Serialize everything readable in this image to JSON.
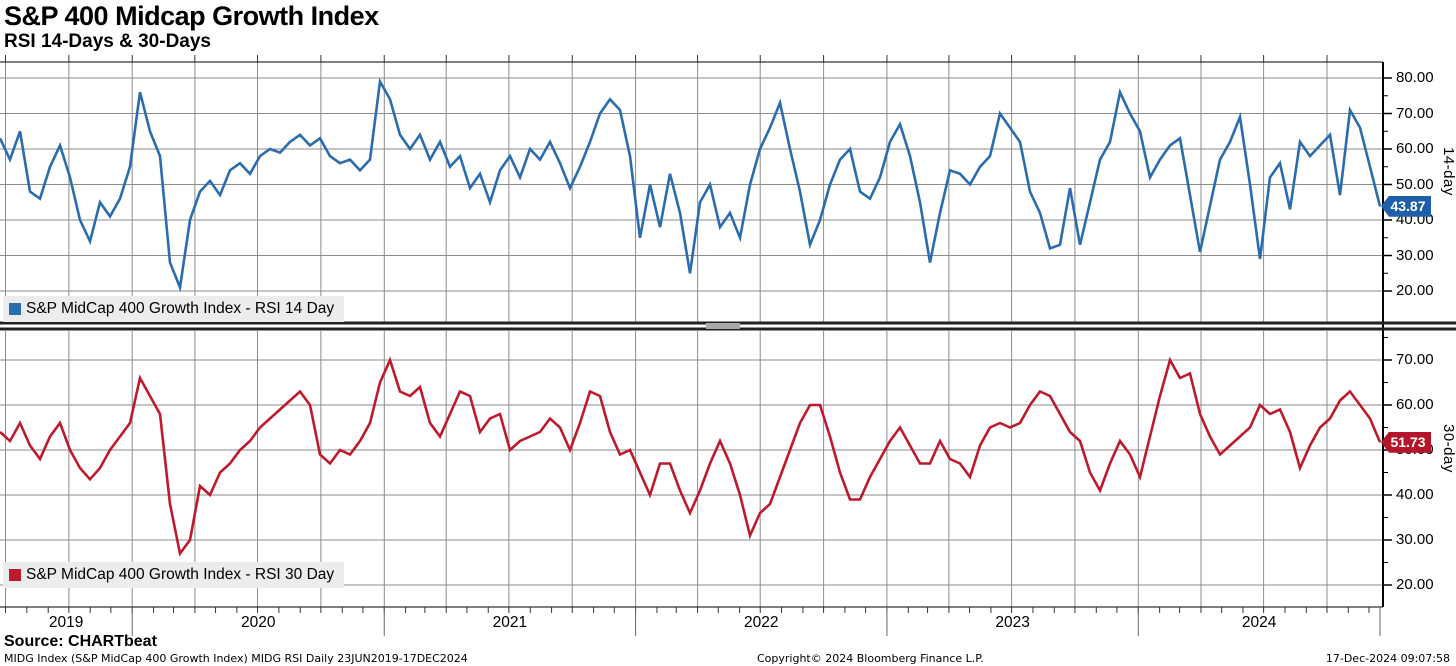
{
  "title": "S&P 400 Midcap Growth Index",
  "subtitle": "RSI 14-Days & 30-Days",
  "source_line": "Source: CHARTbeat",
  "footer": {
    "left": "MIDG Index (S&P MidCap 400 Growth Index) MIDG RSI  Daily 23JUN2019-17DEC2024",
    "center": "Copyright© 2024 Bloomberg Finance L.P.",
    "right": "17-Dec-2024 09:07:58"
  },
  "x_axis": {
    "year_labels": [
      "2019",
      "2020",
      "2021",
      "2022",
      "2023",
      "2024"
    ],
    "date_start": "2019-06-23",
    "date_end": "2024-12-17"
  },
  "panels": [
    {
      "id": "rsi14",
      "axis_title": "14-day",
      "legend_label": "S&P MidCap 400 Growth Index - RSI 14 Day",
      "line_color": "#2b6cad",
      "badge_color": "#1f5fa9",
      "last_value_label": "43.87",
      "y_tick_labels": [
        "80.00",
        "70.00",
        "60.00",
        "50.00",
        "40.00",
        "30.00",
        "20.00"
      ]
    },
    {
      "id": "rsi30",
      "axis_title": "30-day",
      "legend_label": "S&P MidCap 400 Growth Index - RSI 30 Day",
      "line_color": "#bd1a2d",
      "badge_color": "#b5152b",
      "last_value_label": "51.73",
      "y_tick_labels": [
        "70.00",
        "60.00",
        "50.00",
        "40.00",
        "30.00",
        "20.00"
      ]
    }
  ],
  "chart_data": [
    {
      "type": "line",
      "title": "S&P MidCap 400 Growth Index - RSI 14 Day",
      "x_range": [
        "23JUN2019",
        "17DEC2024"
      ],
      "x_note": "values evenly spaced in time, weekly-to-biweekly estimates read from chart",
      "ylabel": "14-day",
      "ylim": [
        20,
        80
      ],
      "grid": true,
      "legend_position": "bottom-left",
      "last_value": 43.87,
      "values": [
        63,
        57,
        65,
        48,
        46,
        55,
        61,
        52,
        40,
        34,
        45,
        41,
        46,
        55,
        76,
        65,
        58,
        28,
        21,
        40,
        48,
        51,
        47,
        54,
        56,
        53,
        58,
        60,
        59,
        62,
        64,
        61,
        63,
        58,
        56,
        57,
        54,
        57,
        79,
        74,
        64,
        60,
        64,
        57,
        62,
        55,
        58,
        49,
        53,
        45,
        54,
        58,
        52,
        60,
        57,
        62,
        56,
        49,
        55,
        62,
        70,
        74,
        71,
        58,
        35,
        50,
        38,
        53,
        42,
        25,
        45,
        50,
        38,
        42,
        35,
        50,
        60,
        66,
        73,
        60,
        48,
        33,
        40,
        50,
        57,
        60,
        48,
        46,
        52,
        62,
        67,
        58,
        45,
        28,
        42,
        54,
        53,
        50,
        55,
        58,
        70,
        66,
        62,
        48,
        42,
        32,
        33,
        49,
        33,
        45,
        57,
        62,
        76,
        70,
        65,
        52,
        57,
        61,
        63,
        47,
        31,
        44,
        57,
        62,
        69,
        50,
        29,
        52,
        56,
        43,
        62,
        58,
        61,
        64,
        47,
        71,
        66,
        55,
        43.87
      ]
    },
    {
      "type": "line",
      "title": "S&P MidCap 400 Growth Index - RSI 30 Day",
      "x_range": [
        "23JUN2019",
        "17DEC2024"
      ],
      "x_note": "values evenly spaced in time, weekly-to-biweekly estimates read from chart",
      "ylabel": "30-day",
      "ylim": [
        20,
        70
      ],
      "grid": true,
      "legend_position": "bottom-left",
      "last_value": 51.73,
      "values": [
        54,
        52,
        56,
        51,
        48,
        53,
        56,
        50,
        46,
        43.5,
        46,
        50,
        53,
        56,
        66,
        62,
        58,
        38,
        27,
        30,
        42,
        40,
        45,
        47,
        50,
        52,
        55,
        57,
        59,
        61,
        63,
        60,
        49,
        47,
        50,
        49,
        52,
        56,
        65,
        70,
        63,
        62,
        64,
        56,
        53,
        58,
        63,
        62,
        54,
        57,
        58,
        50,
        52,
        53,
        54,
        57,
        55,
        50,
        56,
        63,
        62,
        54,
        49,
        50,
        45,
        40,
        47,
        47,
        41,
        36,
        41,
        47,
        52,
        47,
        40,
        31,
        36,
        38,
        44,
        50,
        56,
        60,
        60,
        53,
        45,
        39,
        39,
        44,
        48,
        52,
        55,
        51,
        47,
        47,
        52,
        48,
        47,
        44,
        51,
        55,
        56,
        55,
        56,
        60,
        63,
        62,
        58,
        54,
        52,
        45,
        41,
        47,
        52,
        49,
        44,
        53,
        62,
        70,
        66,
        67,
        58,
        53,
        49,
        51,
        53,
        55,
        60,
        58,
        59,
        54,
        46,
        51,
        55,
        57,
        61,
        63,
        60,
        57,
        51.73
      ]
    }
  ]
}
